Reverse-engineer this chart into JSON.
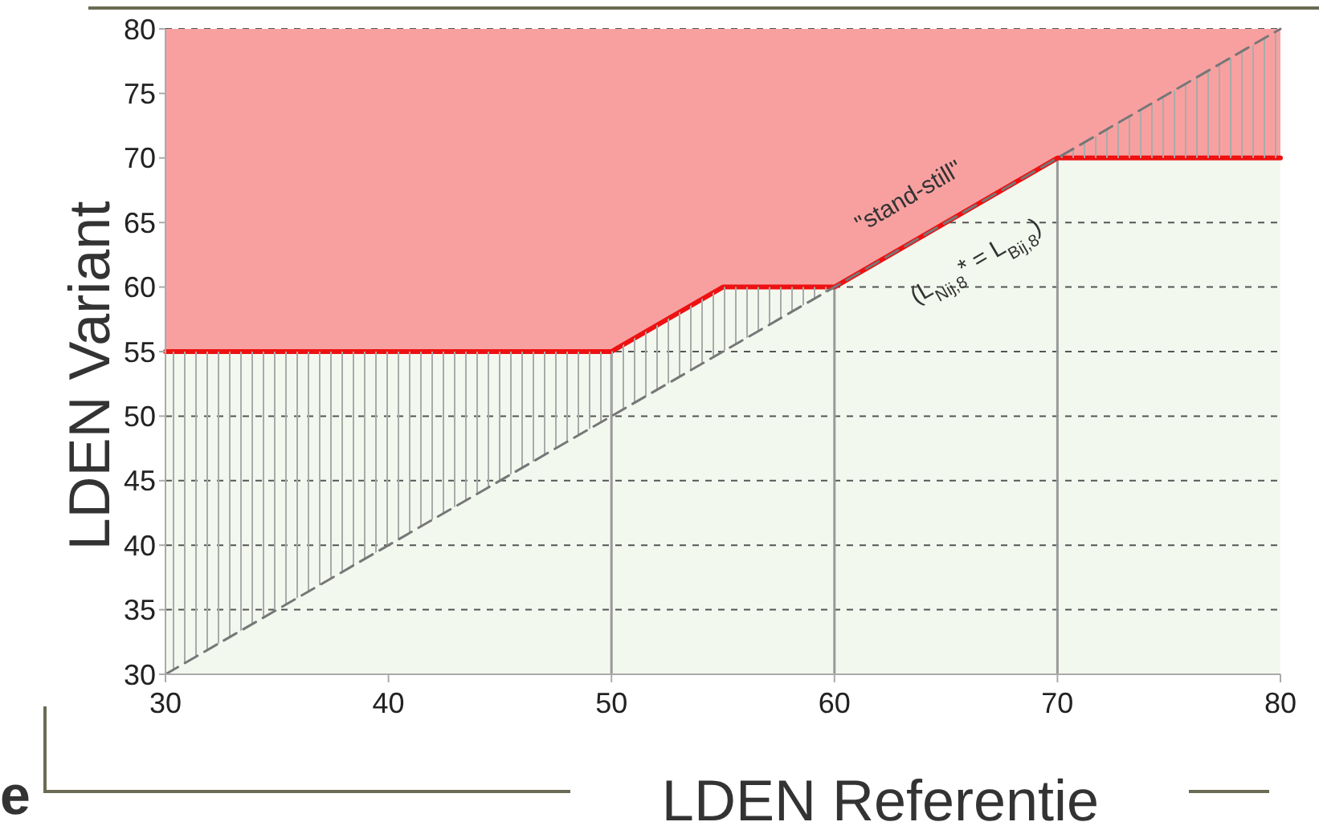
{
  "chart_data": {
    "type": "line",
    "xlabel": "LDEN Referentie",
    "ylabel": "LDEN Variant",
    "xlim": [
      30,
      80
    ],
    "ylim": [
      30,
      80
    ],
    "xticks": [
      30,
      40,
      50,
      60,
      70,
      80
    ],
    "yticks": [
      30,
      35,
      40,
      45,
      50,
      55,
      60,
      65,
      70,
      75,
      80
    ],
    "grid": "y",
    "series": [
      {
        "type": "line",
        "color": "#ee1111",
        "x": [
          30,
          50,
          55,
          60,
          70,
          80
        ],
        "values": [
          55,
          55,
          60,
          60,
          70,
          70
        ],
        "lower": [
          55,
          55,
          60,
          60,
          70,
          70
        ],
        "upper": [
          80,
          80,
          80,
          80,
          80,
          80
        ]
      },
      {
        "color": "#777777",
        "line_style": "dashed",
        "x": [
          30,
          50,
          55,
          60,
          70,
          80
        ],
        "values": [
          30,
          50,
          55,
          60,
          70,
          80
        ],
        "lower": [
          30,
          50,
          55,
          60,
          70,
          70
        ],
        "upper": [
          55,
          55,
          60,
          60,
          70,
          80
        ]
      }
    ],
    "ref_lines": [
      {
        "axis": "x",
        "value": 50,
        "color": "#999999"
      },
      {
        "axis": "x",
        "value": 60,
        "color": "#999999"
      },
      {
        "axis": "x",
        "value": 70,
        "color": "#999999"
      }
    ],
    "annotations": [
      "\"stand-still\"",
      "(L$_{Nij,8}$* = L$_{Bij,8}$)",
      "e"
    ]
  }
}
